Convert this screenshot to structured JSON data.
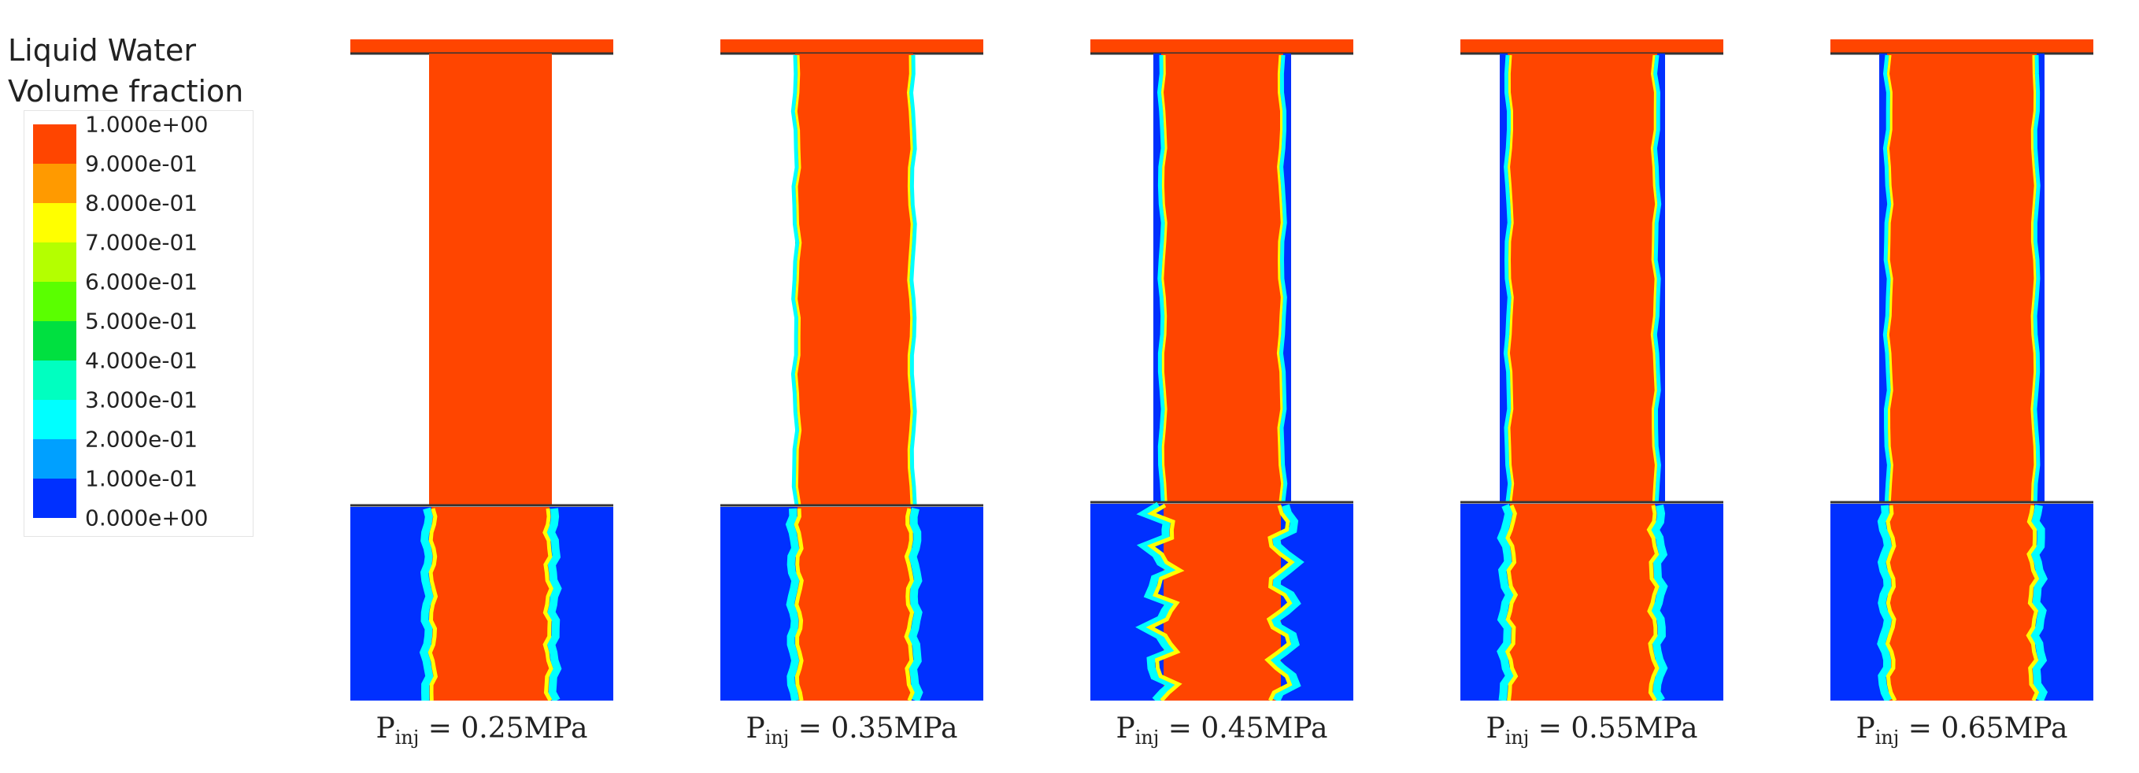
{
  "legend": {
    "title_line1": "Liquid Water",
    "title_line2": "Volume fraction",
    "ticks": [
      "1.000e+00",
      "9.000e-01",
      "8.000e-01",
      "7.000e-01",
      "6.000e-01",
      "5.000e-01",
      "4.000e-01",
      "3.000e-01",
      "2.000e-01",
      "1.000e-01",
      "0.000e+00"
    ],
    "colors": [
      "#ff4500",
      "#ff9a00",
      "#ffff00",
      "#b4ff00",
      "#5aff00",
      "#00e040",
      "#00ffc0",
      "#00ffff",
      "#00a0ff",
      "#0030ff"
    ]
  },
  "colors": {
    "water": "#ff4500",
    "gas": "#0030ff",
    "wall": "#ffffff",
    "edge_mid": "#00ffff",
    "edge_inner": "#ffff00"
  },
  "panels": [
    {
      "symbol": "P",
      "subscript": "inj",
      "eq": " = 0.25MPa"
    },
    {
      "symbol": "P",
      "subscript": "inj",
      "eq": " = 0.35MPa"
    },
    {
      "symbol": "P",
      "subscript": "inj",
      "eq": " = 0.45MPa"
    },
    {
      "symbol": "P",
      "subscript": "inj",
      "eq": " = 0.55MPa"
    },
    {
      "symbol": "P",
      "subscript": "inj",
      "eq": " = 0.65MPa"
    }
  ]
}
